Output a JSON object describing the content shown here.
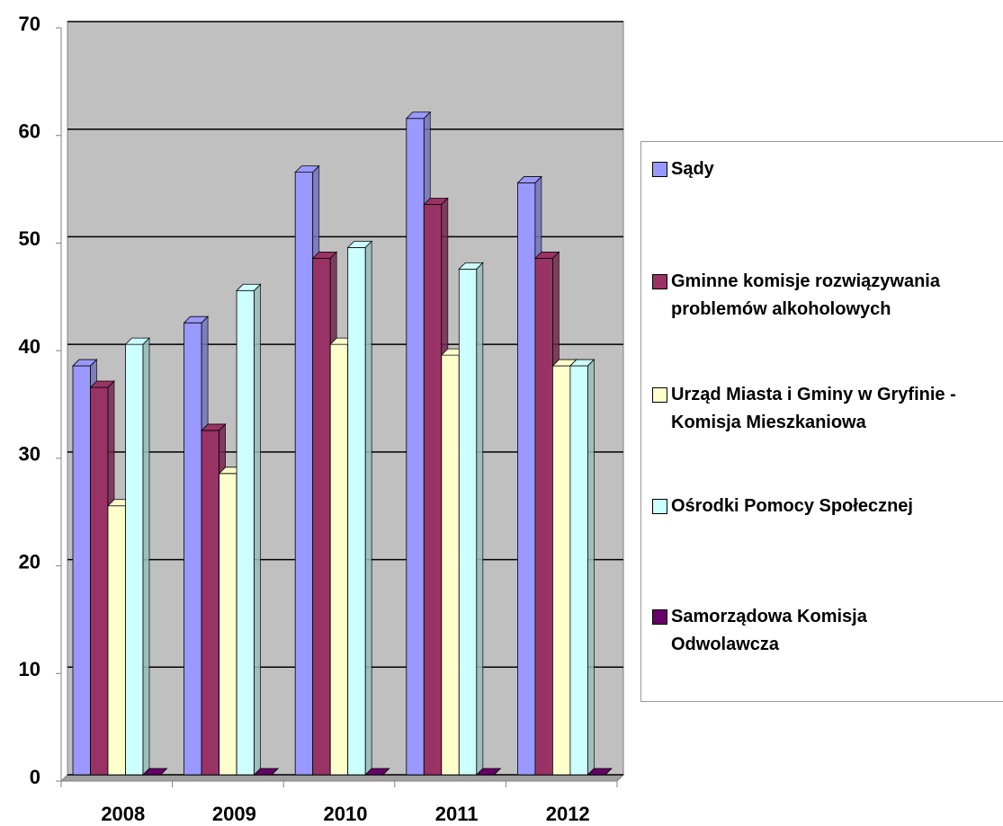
{
  "chart_data": {
    "type": "bar",
    "categories": [
      "2008",
      "2009",
      "2010",
      "2011",
      "2012"
    ],
    "series": [
      {
        "name": "Sądy",
        "color": "#9999ff",
        "values": [
          38,
          42,
          56,
          61,
          55
        ]
      },
      {
        "name": "Gminne komisje rozwiązywania problemów alkoholowych",
        "color": "#993366",
        "values": [
          36,
          32,
          48,
          53,
          48
        ]
      },
      {
        "name": "Urząd Miasta i Gminy w Gryfinie - Komisja Mieszkaniowa",
        "color": "#ffffcc",
        "values": [
          25,
          28,
          40,
          39,
          38
        ]
      },
      {
        "name": "Ośrodki Pomocy Społecznej",
        "color": "#ccffff",
        "values": [
          40,
          45,
          49,
          47,
          38
        ]
      },
      {
        "name": "Samorządowa Komisja Odwolawcza",
        "color": "#660066",
        "values": [
          0,
          0,
          0,
          0,
          0
        ]
      }
    ],
    "ylim": [
      0,
      70
    ],
    "yticks": [
      0,
      10,
      20,
      30,
      40,
      50,
      60,
      70
    ],
    "grid": true,
    "legend": "right"
  }
}
